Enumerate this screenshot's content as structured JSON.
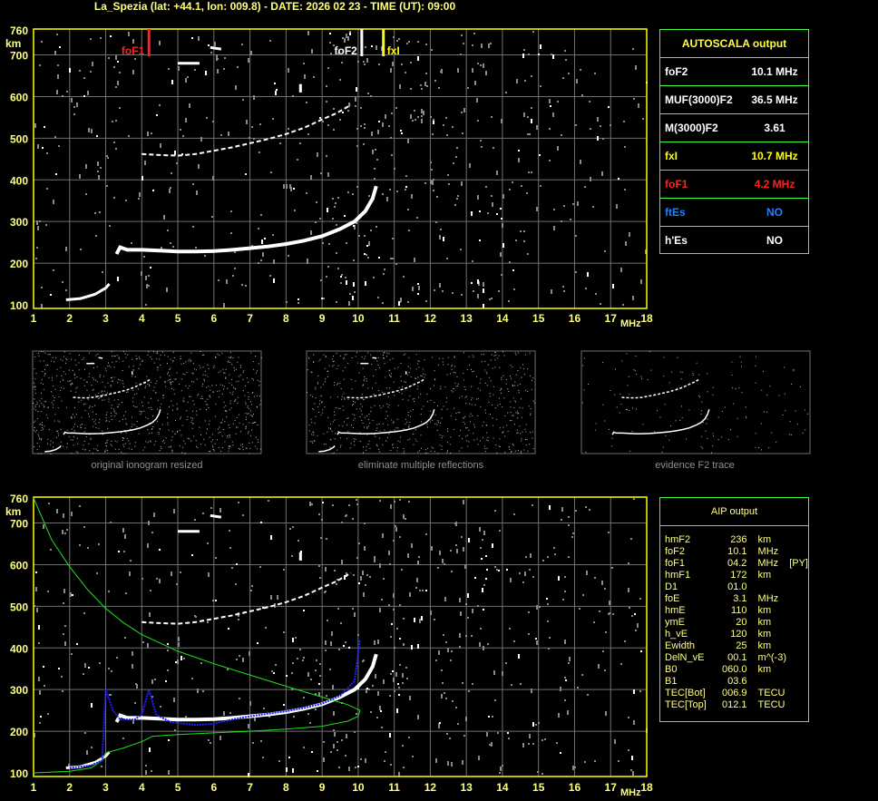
{
  "title": "La_Spezia (lat: +44.1, lon: 009.8) - DATE: 2026 02 23 - TIME (UT): 09:00",
  "colors": {
    "title": "#ffff80",
    "frame": "#ffff00",
    "grid": "#707070",
    "table_border": "#40ff40",
    "foF1": "#ff2020",
    "foF2": "#ffffff",
    "fxI": "#ffff00",
    "ftEs": "#2080ff",
    "profile": "#20e020",
    "synthetic_trace": "#2020ff"
  },
  "chart_data": [
    {
      "type": "scatter",
      "title": "",
      "xlabel": "MHz",
      "ylabel": "km",
      "xlim": [
        1,
        18
      ],
      "ylim": [
        100,
        760
      ],
      "x_ticks": [
        "1",
        "2",
        "3",
        "4",
        "5",
        "6",
        "7",
        "8",
        "9",
        "10",
        "11",
        "12",
        "13",
        "14",
        "15",
        "16",
        "17",
        "18"
      ],
      "y_ticks": [
        "100",
        "200",
        "300",
        "400",
        "500",
        "600",
        "700",
        "760"
      ],
      "grid": true,
      "markers": [
        {
          "label": "foF1",
          "freq": 4.2,
          "color": "#ff2020"
        },
        {
          "label": "foF2",
          "freq": 10.1,
          "color": "#ffffff"
        },
        {
          "label": "fxI",
          "freq": 10.7,
          "color": "#ffff00"
        }
      ],
      "traces": [
        {
          "kind": "E-trace",
          "points": [
            [
              1.9,
              112
            ],
            [
              2.3,
              115
            ],
            [
              2.7,
              125
            ],
            [
              3.0,
              140
            ],
            [
              3.1,
              150
            ]
          ]
        },
        {
          "kind": "F-trace",
          "points": [
            [
              3.3,
              222
            ],
            [
              3.4,
              238
            ],
            [
              3.6,
              232
            ],
            [
              4.0,
              232
            ],
            [
              4.5,
              230
            ],
            [
              5.0,
              228
            ],
            [
              5.5,
              228
            ],
            [
              6.0,
              229
            ],
            [
              6.5,
              232
            ],
            [
              7.0,
              236
            ],
            [
              7.5,
              240
            ],
            [
              8.0,
              246
            ],
            [
              8.5,
              254
            ],
            [
              9.0,
              265
            ],
            [
              9.5,
              282
            ],
            [
              9.9,
              300
            ],
            [
              10.2,
              325
            ],
            [
              10.4,
              355
            ],
            [
              10.5,
              385
            ]
          ]
        },
        {
          "kind": "second-hop",
          "points": [
            [
              4.0,
              462
            ],
            [
              4.4,
              460
            ],
            [
              5.0,
              458
            ],
            [
              5.5,
              462
            ],
            [
              6.0,
              470
            ],
            [
              6.5,
              478
            ],
            [
              7.0,
              488
            ],
            [
              7.5,
              498
            ],
            [
              8.0,
              510
            ],
            [
              8.5,
              525
            ],
            [
              9.0,
              545
            ],
            [
              9.4,
              560
            ],
            [
              9.8,
              580
            ]
          ]
        },
        {
          "kind": "spurious",
          "points": [
            [
              5.0,
              680
            ],
            [
              5.6,
              680
            ]
          ]
        },
        {
          "kind": "spurious",
          "points": [
            [
              5.9,
              718
            ],
            [
              6.2,
              714
            ]
          ]
        },
        {
          "kind": "spurious",
          "points": [
            [
              8.4,
              630
            ],
            [
              8.4,
              610
            ]
          ]
        }
      ]
    },
    {
      "type": "line",
      "title": "",
      "xlabel": "MHz",
      "ylabel": "km",
      "xlim": [
        1,
        18
      ],
      "ylim": [
        100,
        760
      ],
      "x_ticks": [
        "1",
        "2",
        "3",
        "4",
        "5",
        "6",
        "7",
        "8",
        "9",
        "10",
        "11",
        "12",
        "13",
        "14",
        "15",
        "16",
        "17",
        "18"
      ],
      "y_ticks": [
        "100",
        "200",
        "300",
        "400",
        "500",
        "600",
        "700",
        "760"
      ],
      "grid": true,
      "series": [
        {
          "kind": "profile",
          "color": "#20e020",
          "points": [
            [
              1.0,
              760
            ],
            [
              1.5,
              660
            ],
            [
              2.0,
              595
            ],
            [
              2.5,
              540
            ],
            [
              3.0,
              495
            ],
            [
              3.5,
              460
            ],
            [
              4.0,
              432
            ],
            [
              5.0,
              392
            ],
            [
              6.0,
              362
            ],
            [
              7.0,
              335
            ],
            [
              8.0,
              308
            ],
            [
              9.0,
              282
            ],
            [
              9.7,
              264
            ],
            [
              10.05,
              250
            ],
            [
              10.0,
              236
            ],
            [
              9.7,
              224
            ],
            [
              9.0,
              212
            ],
            [
              8.0,
              205
            ],
            [
              7.0,
              200
            ],
            [
              6.0,
              196
            ],
            [
              5.0,
              192
            ],
            [
              4.3,
              188
            ],
            [
              4.0,
              175
            ],
            [
              3.5,
              160
            ],
            [
              3.0,
              148
            ],
            [
              2.9,
              130
            ],
            [
              2.6,
              112
            ],
            [
              2.0,
              104
            ],
            [
              1.0,
              100
            ]
          ]
        },
        {
          "kind": "synthetic",
          "color": "#2020ff",
          "points": [
            [
              2.0,
              112
            ],
            [
              2.6,
              118
            ],
            [
              2.9,
              130
            ],
            [
              3.0,
              300
            ],
            [
              3.2,
              250
            ],
            [
              3.4,
              228
            ],
            [
              3.8,
              228
            ],
            [
              4.0,
              240
            ],
            [
              4.2,
              300
            ],
            [
              4.4,
              240
            ],
            [
              4.8,
              222
            ],
            [
              5.5,
              215
            ],
            [
              6.0,
              218
            ],
            [
              6.5,
              228
            ],
            [
              7.0,
              236
            ],
            [
              7.5,
              242
            ],
            [
              8.0,
              248
            ],
            [
              8.5,
              256
            ],
            [
              9.0,
              266
            ],
            [
              9.5,
              285
            ],
            [
              9.9,
              320
            ],
            [
              10.05,
              420
            ]
          ]
        }
      ]
    }
  ],
  "thumbnails": [
    {
      "caption": "original ionogram resized"
    },
    {
      "caption": "eliminate multiple reflections"
    },
    {
      "caption": "evidence F2 trace"
    }
  ],
  "autoscala": {
    "header": "AUTOSCALA output",
    "rows": [
      {
        "label": "foF2",
        "value": "10.1 MHz",
        "color": "#ffffff"
      },
      {
        "label": "MUF(3000)F2",
        "value": "36.5 MHz",
        "color": "#ffffff"
      },
      {
        "label": "M(3000)F2",
        "value": "3.61",
        "color": "#ffffff"
      },
      {
        "label": "fxI",
        "value": "10.7 MHz",
        "color": "#ffff00"
      },
      {
        "label": "foF1",
        "value": "4.2 MHz",
        "color": "#ff2020"
      },
      {
        "label": "ftEs",
        "value": "NO",
        "color": "#2080ff"
      },
      {
        "label": "h'Es",
        "value": "NO",
        "color": "#ffffff"
      }
    ]
  },
  "aip": {
    "header": "AIP output",
    "rows": [
      {
        "name": "hmF2",
        "value": "236",
        "unit": "km"
      },
      {
        "name": "foF2",
        "value": "10.1",
        "unit": "MHz"
      },
      {
        "name": "foF1",
        "value": "04.2",
        "unit": "MHz    [PY]"
      },
      {
        "name": "hmF1",
        "value": "172",
        "unit": "km"
      },
      {
        "name": "D1",
        "value": "01.0",
        "unit": ""
      },
      {
        "name": "foE",
        "value": "3.1",
        "unit": "MHz"
      },
      {
        "name": "hmE",
        "value": "110",
        "unit": "km"
      },
      {
        "name": "ymE",
        "value": "20",
        "unit": "km"
      },
      {
        "name": "h_vE",
        "value": "120",
        "unit": "km"
      },
      {
        "name": "Ewidth",
        "value": "25",
        "unit": "km"
      },
      {
        "name": "DelN_vE",
        "value": "00.1",
        "unit": "m^(-3)"
      },
      {
        "name": "B0",
        "value": "060.0",
        "unit": "km"
      },
      {
        "name": "B1",
        "value": "03.6",
        "unit": ""
      },
      {
        "name": "TEC[Bot]",
        "value": "006.9",
        "unit": "TECU"
      },
      {
        "name": "TEC[Top]",
        "value": "012.1",
        "unit": "TECU"
      }
    ]
  }
}
